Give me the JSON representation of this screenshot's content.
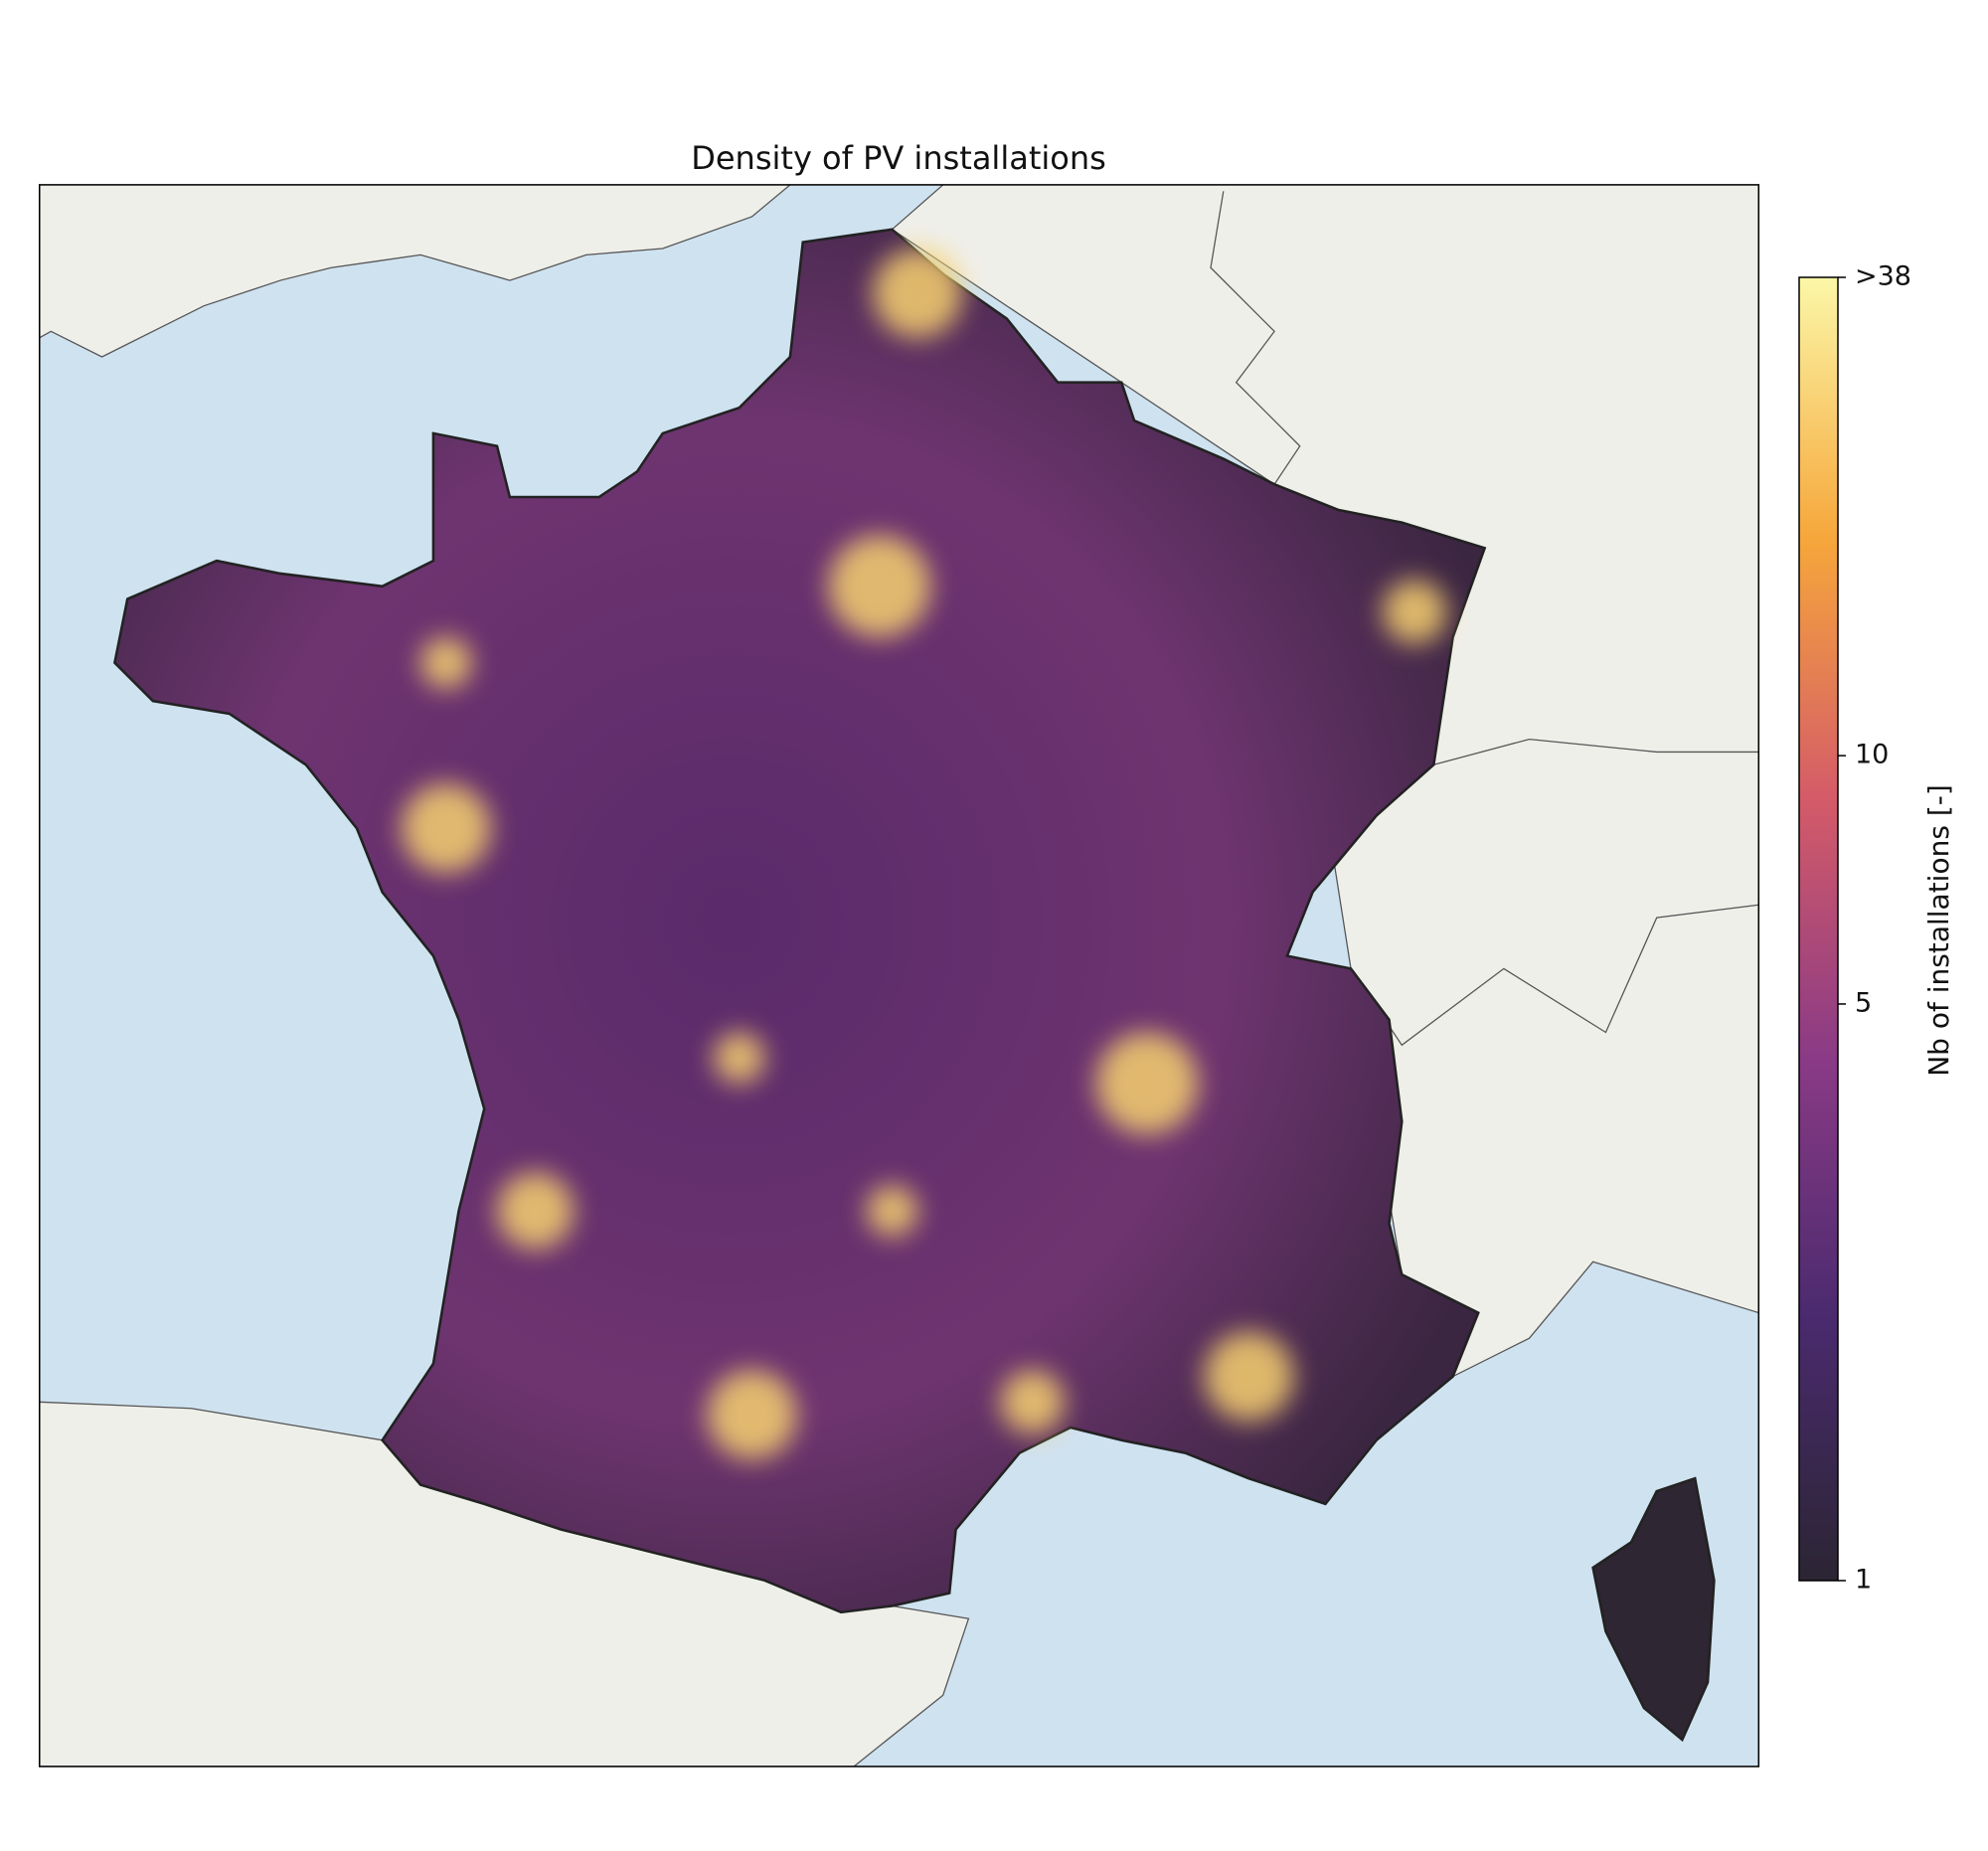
{
  "chart_data": {
    "type": "map",
    "title": "Density of PV installations",
    "colorbar": {
      "label": "Nb of installations [-]",
      "scale": "log",
      "lim": [
        1,
        38
      ],
      "ticks": [
        1,
        5,
        10,
        {
          "value": 38,
          "label": ">38"
        }
      ]
    }
  }
}
